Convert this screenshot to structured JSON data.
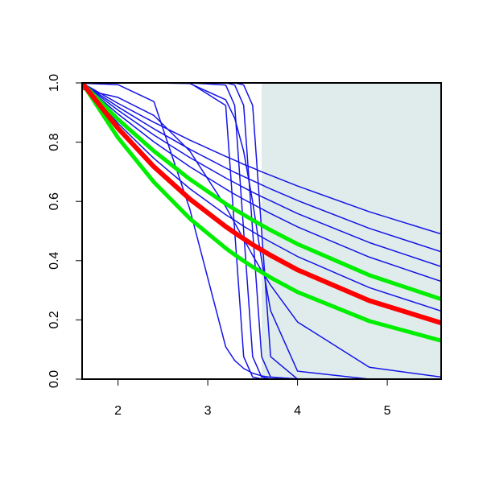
{
  "chart_data": {
    "type": "line",
    "x": [
      1.6,
      2,
      2.4,
      2.8,
      3.2,
      3.3,
      3.4,
      3.5,
      3.6,
      3.7,
      4,
      4.8,
      5.6
    ],
    "xlim": [
      1.6,
      5.6
    ],
    "xticks": [
      2,
      3,
      4,
      5
    ],
    "ylim": [
      0,
      1
    ],
    "yticks": [
      {
        "value": 0,
        "label": "0.0"
      },
      {
        "value": 0.2,
        "label": "0.2"
      },
      {
        "value": 0.4,
        "label": "0.4"
      },
      {
        "value": 0.6,
        "label": "0.6"
      },
      {
        "value": 0.8,
        "label": "0.8"
      },
      {
        "value": 1,
        "label": "1.0"
      }
    ],
    "shaded_region": {
      "xlim": [
        3.6,
        5.6
      ],
      "color": "#e0ecec"
    },
    "series": [
      {
        "color": "#1414e6",
        "width": 1.5,
        "values": [
          1,
          0.931,
          0.867,
          0.807,
          0.752,
          0.739,
          0.725,
          0.713,
          0.7,
          0.688,
          0.652,
          0.565,
          0.49
        ]
      },
      {
        "color": "#1414e6",
        "width": 1.5,
        "values": [
          1,
          0.919,
          0.845,
          0.776,
          0.713,
          0.698,
          0.684,
          0.67,
          0.656,
          0.642,
          0.603,
          0.509,
          0.43
        ]
      },
      {
        "color": "#1414e6",
        "width": 1.5,
        "values": [
          1,
          0.908,
          0.824,
          0.748,
          0.679,
          0.663,
          0.647,
          0.631,
          0.616,
          0.602,
          0.559,
          0.461,
          0.38
        ]
      },
      {
        "color": "#1414e6",
        "width": 1.5,
        "values": [
          1,
          0.895,
          0.801,
          0.717,
          0.642,
          0.624,
          0.607,
          0.591,
          0.575,
          0.559,
          0.514,
          0.412,
          0.33
        ]
      },
      {
        "color": "#1414e6",
        "width": 1.5,
        "values": [
          1,
          0.863,
          0.745,
          0.643,
          0.555,
          0.536,
          0.516,
          0.498,
          0.48,
          0.463,
          0.414,
          0.309,
          0.23
        ]
      },
      {
        "color": "#1414e6",
        "width": 1.5,
        "values": [
          1,
          1,
          1,
          1,
          0.924,
          0.5,
          0.076,
          0.007,
          0.001,
          0,
          0,
          0,
          0
        ]
      },
      {
        "color": "#1414e6",
        "width": 1.5,
        "values": [
          1,
          1,
          1,
          1,
          0.993,
          0.924,
          0.5,
          0.076,
          0.007,
          0,
          0,
          0,
          0
        ]
      },
      {
        "color": "#1414e6",
        "width": 1.5,
        "values": [
          1,
          1,
          1,
          1,
          1,
          0.993,
          0.924,
          0.5,
          0.076,
          0.007,
          0,
          0,
          0
        ]
      },
      {
        "color": "#1414e6",
        "width": 1.5,
        "values": [
          1,
          1,
          1,
          1,
          1,
          1,
          0.993,
          0.924,
          0.5,
          0.076,
          0,
          0,
          0
        ]
      },
      {
        "color": "#1414e6",
        "width": 1.5,
        "values": [
          1,
          1,
          1,
          0.998,
          0.943,
          0.881,
          0.769,
          0.599,
          0.401,
          0.231,
          0.027,
          0,
          0
        ]
      },
      {
        "color": "#1414e6",
        "width": 1.5,
        "values": [
          0.999,
          0.994,
          0.937,
          0.574,
          0.109,
          0.063,
          0.036,
          0.02,
          0.011,
          0.006,
          0.001,
          0,
          0
        ]
      },
      {
        "color": "#1414e6",
        "width": 1.5,
        "values": [
          0.979,
          0.951,
          0.89,
          0.77,
          0.582,
          0.527,
          0.473,
          0.418,
          0.366,
          0.317,
          0.193,
          0.04,
          0.007
        ]
      },
      {
        "color": "#00ee00",
        "width": 5,
        "values": [
          1,
          0.877,
          0.77,
          0.675,
          0.592,
          0.573,
          0.555,
          0.537,
          0.52,
          0.503,
          0.456,
          0.351,
          0.27
        ]
      },
      {
        "color": "#00ee00",
        "width": 5,
        "values": [
          1,
          0.815,
          0.665,
          0.542,
          0.442,
          0.42,
          0.399,
          0.379,
          0.361,
          0.343,
          0.294,
          0.196,
          0.13
        ]
      },
      {
        "color": "#ff0000",
        "width": 6,
        "values": [
          1,
          0.847,
          0.717,
          0.608,
          0.515,
          0.494,
          0.474,
          0.454,
          0.436,
          0.418,
          0.369,
          0.265,
          0.19
        ]
      }
    ]
  }
}
